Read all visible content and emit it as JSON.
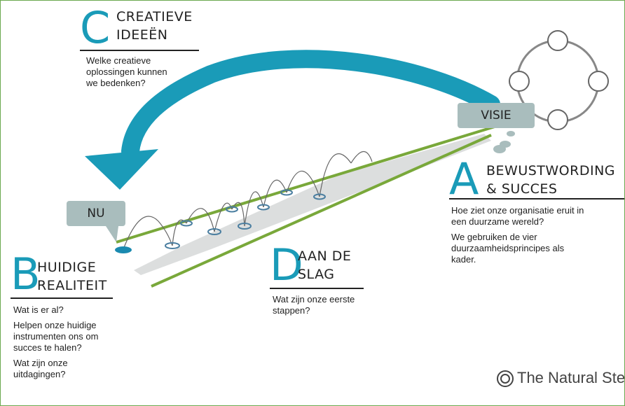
{
  "sections": [
    {
      "letter": "C",
      "title": [
        "CREATIEVE",
        "IDEEËN"
      ],
      "paragraphs": [
        [
          "Welke creatieve",
          "oplossingen kunnen",
          "we bedenken?"
        ]
      ]
    },
    {
      "letter": "A",
      "title": [
        "BEWUSTWORDING",
        "& SUCCES"
      ],
      "paragraphs": [
        [
          "Hoe ziet onze organisatie eruit in",
          "een duurzame wereld?"
        ],
        [
          "We gebruiken de vier",
          "duurzaamheidsprincipes als",
          "kader."
        ]
      ]
    },
    {
      "letter": "B",
      "title": [
        "HUIDIGE",
        "REALITEIT"
      ],
      "paragraphs": [
        [
          "Wat is er al?"
        ],
        [
          "Helpen onze huidige",
          "instrumenten ons om",
          "succes te halen?"
        ],
        [
          "Wat zijn onze",
          "uitdagingen?"
        ]
      ]
    },
    {
      "letter": "D",
      "title": [
        "AAN DE",
        "SLAG"
      ],
      "paragraphs": [
        [
          "Wat zijn onze eerste",
          "stappen?"
        ]
      ]
    }
  ],
  "labels": {
    "visie": "VISIE",
    "nu": "NU"
  },
  "logo": "The Natural Step"
}
